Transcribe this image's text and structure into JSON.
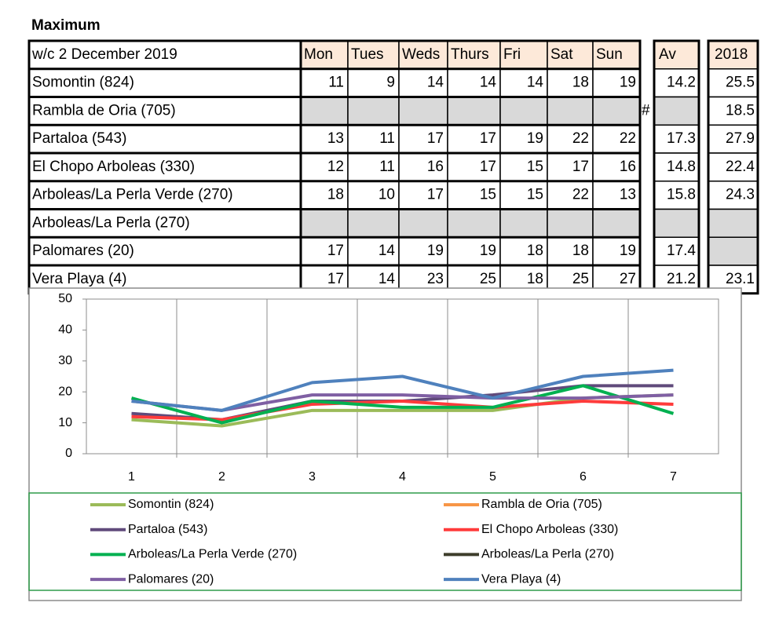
{
  "title": "Maximum",
  "table": {
    "header": [
      "w/c 2 December 2019",
      "Mon",
      "Tues",
      "Weds",
      "Thurs",
      "Fri",
      "Sat",
      "Sun"
    ],
    "av_header": "Av",
    "prev_header": "2018",
    "rows": [
      {
        "name": "Somontin (824)",
        "values": [
          11,
          9,
          14,
          14,
          14,
          18,
          19
        ],
        "av": 14.2,
        "prev": 25.5
      },
      {
        "name": "Rambla de Oria (705)",
        "values": [
          null,
          null,
          null,
          null,
          null,
          null,
          null
        ],
        "note": "#",
        "av": null,
        "prev": 18.5
      },
      {
        "name": "Partaloa (543)",
        "values": [
          13,
          11,
          17,
          17,
          19,
          22,
          22
        ],
        "av": 17.3,
        "prev": 27.9
      },
      {
        "name": "El Chopo  Arboleas (330)",
        "values": [
          12,
          11,
          16,
          17,
          15,
          17,
          16
        ],
        "av": 14.8,
        "prev": 22.4
      },
      {
        "name": "Arboleas/La Perla Verde (270)",
        "values": [
          18,
          10,
          17,
          15,
          15,
          22,
          13
        ],
        "av": 15.8,
        "prev": 24.3
      },
      {
        "name": "Arboleas/La Perla (270)",
        "values": [
          null,
          null,
          null,
          null,
          null,
          null,
          null
        ],
        "av": null,
        "prev": null
      },
      {
        "name": "Palomares (20)",
        "values": [
          17,
          14,
          19,
          19,
          18,
          18,
          19
        ],
        "av": 17.4,
        "prev": null
      },
      {
        "name": "Vera Playa (4)",
        "values": [
          17,
          14,
          23,
          25,
          18,
          25,
          27
        ],
        "av": 21.2,
        "prev": 23.1
      }
    ]
  },
  "chart_data": {
    "type": "line",
    "categories": [
      "1",
      "2",
      "3",
      "4",
      "5",
      "6",
      "7"
    ],
    "ylim": [
      0,
      50
    ],
    "yticks": [
      0,
      10,
      20,
      30,
      40,
      50
    ],
    "series": [
      {
        "name": "Somontin (824)",
        "color": "#9bbb59",
        "values": [
          11,
          9,
          14,
          14,
          14,
          18,
          19
        ]
      },
      {
        "name": "Rambla de Oria (705)",
        "color": "#f79646",
        "values": [
          null,
          null,
          null,
          null,
          null,
          null,
          null
        ]
      },
      {
        "name": "Partaloa (543)",
        "color": "#604a7b",
        "values": [
          13,
          11,
          17,
          17,
          19,
          22,
          22
        ]
      },
      {
        "name": "El Chopo  Arboleas (330)",
        "color": "#ff3b3b",
        "values": [
          12,
          11,
          16,
          17,
          15,
          17,
          16
        ]
      },
      {
        "name": "Arboleas/La Perla Verde (270)",
        "color": "#00b050",
        "values": [
          18,
          10,
          17,
          15,
          15,
          22,
          13
        ]
      },
      {
        "name": "Arboleas/La Perla (270)",
        "color": "#3d3d2b",
        "values": [
          null,
          null,
          null,
          null,
          null,
          null,
          null
        ]
      },
      {
        "name": "Palomares (20)",
        "color": "#7f5fa3",
        "values": [
          17,
          14,
          19,
          19,
          18,
          18,
          19
        ]
      },
      {
        "name": "Vera Playa (4)",
        "color": "#4f81bd",
        "values": [
          17,
          14,
          23,
          25,
          18,
          25,
          27
        ]
      }
    ]
  }
}
